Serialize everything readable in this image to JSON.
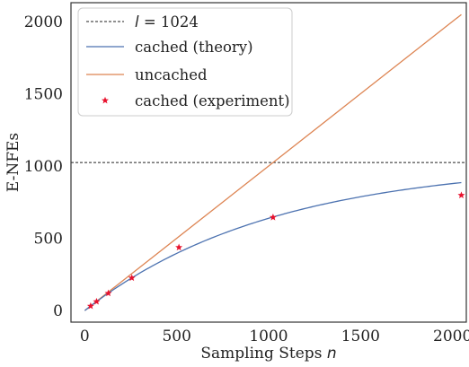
{
  "chart_data": {
    "type": "line",
    "xlabel": "Sampling Steps",
    "xlabel_var": "n",
    "ylabel": "E-NFEs",
    "xlim": [
      -75,
      2075
    ],
    "ylim": [
      -80,
      2130
    ],
    "xticks": [
      "0",
      "500",
      "1000",
      "1500",
      "2000"
    ],
    "xtick_values": [
      0,
      500,
      1000,
      1500,
      2000
    ],
    "yticks": [
      "0",
      "500",
      "1000",
      "1500",
      "2000"
    ],
    "ytick_values": [
      0,
      500,
      1000,
      1500,
      2000
    ],
    "grid": false,
    "legend_position": "top-left",
    "hline": {
      "name_var": "l",
      "name_rest": " = 1024",
      "y": 1024,
      "color": "#222222",
      "style": "dashed"
    },
    "series": [
      {
        "name": "cached (theory)",
        "kind": "curve",
        "color": "#4c72b0",
        "formula": "1024*(1-exp(-n/1024))",
        "x": [
          0,
          32,
          64,
          128,
          256,
          384,
          512,
          640,
          768,
          896,
          1024,
          1280,
          1536,
          1792,
          2048
        ],
        "y": [
          0,
          31.5,
          62.0,
          120.3,
          226.5,
          319.9,
          402.9,
          476.5,
          540.3,
          596.4,
          647.3,
          731.1,
          795.5,
          844.7,
          885.4
        ]
      },
      {
        "name": "uncached",
        "kind": "line",
        "color": "#dd8452",
        "x": [
          0,
          2048
        ],
        "y": [
          0,
          2048
        ]
      },
      {
        "name": "cached (experiment)",
        "kind": "markers",
        "marker": "star",
        "color": "#e8112d",
        "x": [
          32,
          64,
          128,
          256,
          512,
          1024,
          2048
        ],
        "y": [
          31,
          62,
          120,
          226,
          437,
          645,
          798
        ]
      }
    ]
  }
}
